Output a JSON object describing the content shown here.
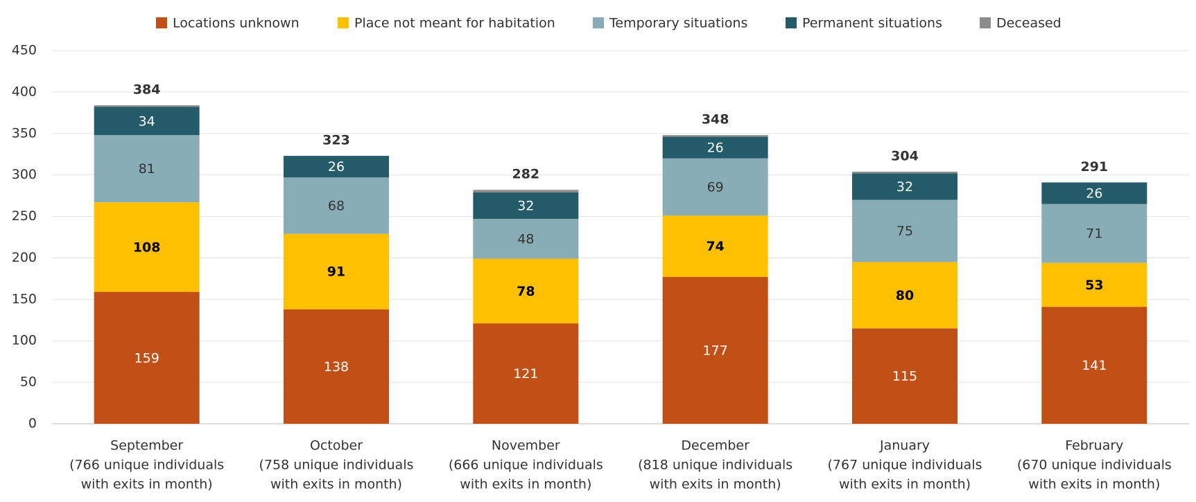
{
  "chart_data": {
    "type": "stacked_bar",
    "categories": [
      [
        "September",
        "(766 unique individuals",
        "with exits in month)"
      ],
      [
        "October",
        "(758 unique individuals",
        "with exits in month)"
      ],
      [
        "November",
        "(666 unique individuals",
        "with exits in month)"
      ],
      [
        "December",
        "(818 unique individuals",
        "with exits in month)"
      ],
      [
        "January",
        "(767 unique individuals",
        "with exits in month)"
      ],
      [
        "February",
        "(670 unique individuals",
        "with exits in month)"
      ]
    ],
    "series": [
      {
        "name": "Locations unknown",
        "color": "#c05016",
        "label_color": "#ffffff",
        "values": [
          159,
          138,
          121,
          177,
          115,
          141
        ]
      },
      {
        "name": "Place not meant for habitation",
        "color": "#ffc000",
        "label_color": "#000000",
        "values": [
          108,
          91,
          78,
          74,
          80,
          53
        ]
      },
      {
        "name": "Temporary situations",
        "color": "#88adb6",
        "label_color": "#333333",
        "values": [
          81,
          68,
          48,
          69,
          75,
          71
        ]
      },
      {
        "name": "Permanent situations",
        "color": "#245b69",
        "label_color": "#ffffff",
        "values": [
          34,
          26,
          32,
          26,
          32,
          26
        ]
      },
      {
        "name": "Deceased",
        "color": "#8c8c8c",
        "label_color": "#ffffff",
        "values": [
          2,
          0,
          3,
          2,
          2,
          0
        ]
      }
    ],
    "totals": [
      384,
      323,
      282,
      348,
      304,
      291
    ],
    "ylim": [
      0,
      450
    ],
    "yticks": [
      0,
      50,
      100,
      150,
      200,
      250,
      300,
      350,
      400,
      450
    ],
    "grid": true,
    "legend": "top"
  }
}
